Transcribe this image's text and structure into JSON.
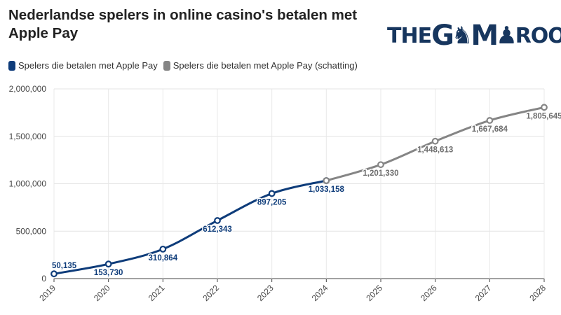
{
  "header": {
    "title": "Nederlandse spelers in online casino's betalen met Apple Pay",
    "logo": {
      "the": "THE",
      "g": "G",
      "a": "A",
      "m": "M",
      "e": "E",
      "room": "ROOM"
    }
  },
  "legend": [
    {
      "label": "Spelers die betalen met Apple Pay",
      "color": "#0e3c7a"
    },
    {
      "label": "Spelers die betalen met Apple Pay (schatting)",
      "color": "#858585"
    }
  ],
  "chart_data": {
    "type": "line",
    "title": "Nederlandse spelers in online casino's betalen met Apple Pay",
    "xlabel": "",
    "ylabel": "",
    "x": [
      "2019",
      "2020",
      "2021",
      "2022",
      "2023",
      "2024",
      "2025",
      "2026",
      "2027",
      "2028"
    ],
    "ylim": [
      0,
      2000000
    ],
    "yticks": [
      "0",
      "500,000",
      "1,000,000",
      "1,500,000",
      "2,000,000"
    ],
    "grid": true,
    "legend_position": "top-left",
    "series": [
      {
        "name": "Spelers die betalen met Apple Pay",
        "color": "#0e3c7a",
        "x": [
          "2019",
          "2020",
          "2021",
          "2022",
          "2023",
          "2024"
        ],
        "values": [
          50135,
          153730,
          310864,
          612343,
          897205,
          1033158
        ],
        "labels": [
          "50,135",
          "153,730",
          "310,864",
          "612,343",
          "897,205",
          "1,033,158"
        ]
      },
      {
        "name": "Spelers die betalen met Apple Pay (schatting)",
        "color": "#858585",
        "x": [
          "2024",
          "2025",
          "2026",
          "2027",
          "2028"
        ],
        "values": [
          1033158,
          1201330,
          1448613,
          1667684,
          1805645
        ],
        "labels": [
          "",
          "1,201,330",
          "1,448,613",
          "1,667,684",
          "1,805,645"
        ]
      }
    ]
  }
}
